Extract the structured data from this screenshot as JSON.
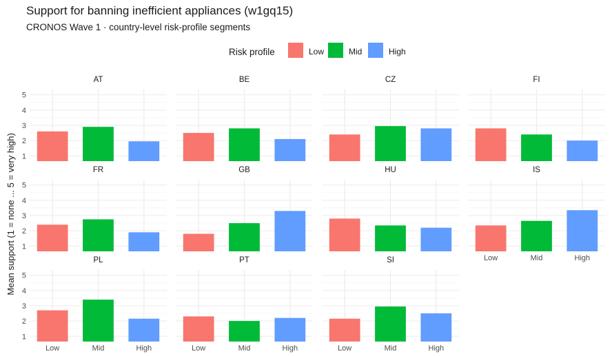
{
  "chart_data": {
    "type": "bar",
    "title": "Support for banning inefficient appliances  (w1gq15)",
    "subtitle": "CRONOS Wave 1 · country-level risk-profile segments",
    "ylabel": "Mean support (1 = none ... 5 = very high)",
    "xlabel": "",
    "categories": [
      "Low",
      "Mid",
      "High"
    ],
    "ylim": [
      1,
      5
    ],
    "yticks": [
      1,
      2,
      3,
      4,
      5
    ],
    "grid": true,
    "legend": {
      "title": "Risk profile",
      "position": "top",
      "entries": [
        {
          "label": "Low",
          "color": "#F8766D"
        },
        {
          "label": "Mid",
          "color": "#00BA38"
        },
        {
          "label": "High",
          "color": "#619CFF"
        }
      ]
    },
    "panels": [
      {
        "name": "AT",
        "values": [
          2.6,
          2.9,
          1.95
        ]
      },
      {
        "name": "BE",
        "values": [
          2.5,
          2.8,
          2.1
        ]
      },
      {
        "name": "CZ",
        "values": [
          2.4,
          2.95,
          2.8
        ]
      },
      {
        "name": "FI",
        "values": [
          2.8,
          2.4,
          2.0
        ]
      },
      {
        "name": "FR",
        "values": [
          2.4,
          2.75,
          1.9
        ]
      },
      {
        "name": "GB",
        "values": [
          1.8,
          2.5,
          3.3
        ]
      },
      {
        "name": "HU",
        "values": [
          2.8,
          2.35,
          2.2
        ]
      },
      {
        "name": "IS",
        "values": [
          2.35,
          2.65,
          3.35
        ]
      },
      {
        "name": "PL",
        "values": [
          2.7,
          3.4,
          2.15
        ]
      },
      {
        "name": "PT",
        "values": [
          2.3,
          2.0,
          2.2
        ]
      },
      {
        "name": "SI",
        "values": [
          2.15,
          2.95,
          2.5
        ]
      }
    ]
  }
}
